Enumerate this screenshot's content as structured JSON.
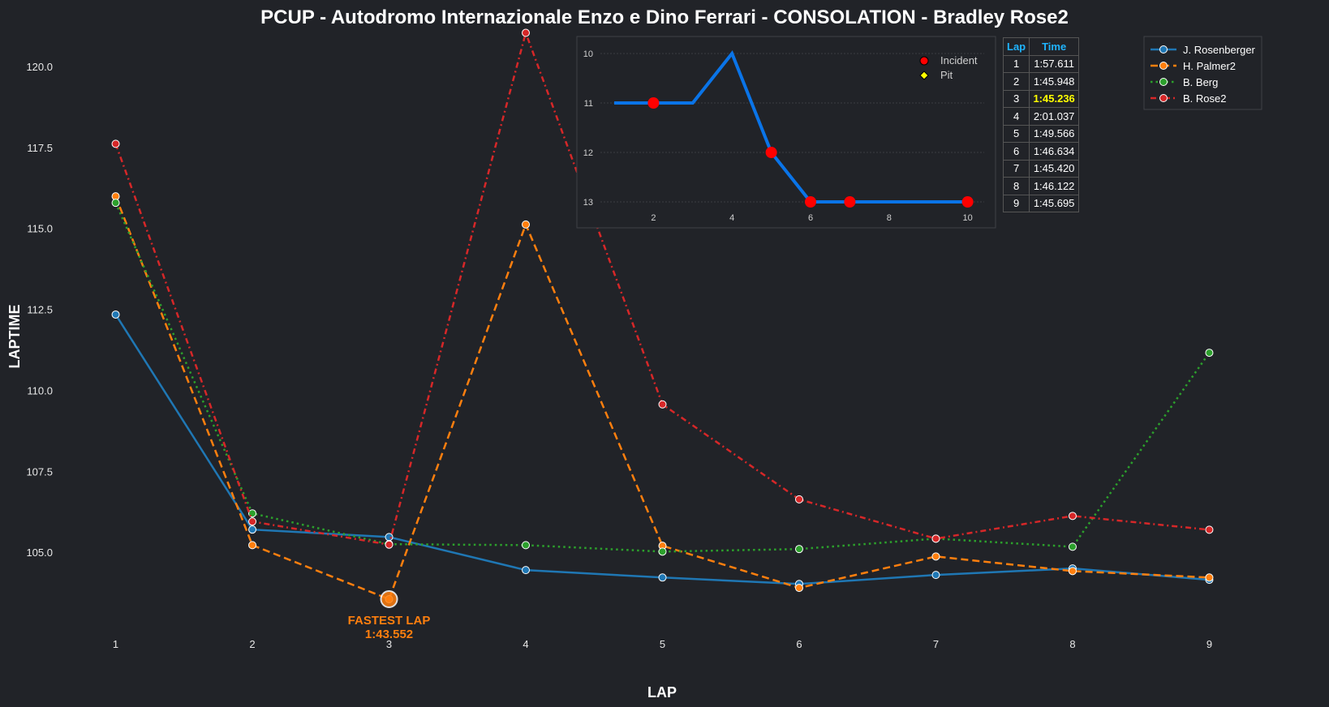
{
  "chart_data": {
    "type": "line",
    "title": "PCUP - Autodromo Internazionale Enzo e Dino Ferrari - CONSOLATION - Bradley Rose2",
    "xlabel": "LAP",
    "ylabel": "LAPTIME",
    "x": [
      1,
      2,
      3,
      4,
      5,
      6,
      7,
      8,
      9
    ],
    "xlim": [
      0.7,
      9.3
    ],
    "ylim": [
      102.15,
      121.1
    ],
    "yticks": [
      105.0,
      107.5,
      110.0,
      112.5,
      115.0,
      117.5,
      120.0
    ],
    "ytick_labels": [
      "105.0",
      "107.5",
      "110.0",
      "112.5",
      "115.0",
      "117.5",
      "120.0"
    ],
    "xtick_labels": [
      "1",
      "2",
      "3",
      "4",
      "5",
      "6",
      "7",
      "8",
      "9"
    ],
    "legend_position": "top-right",
    "series": [
      {
        "name": "J. Rosenberger",
        "color": "#1f77b4",
        "dash": "solid",
        "values": [
          112.34,
          105.7,
          105.47,
          104.45,
          104.22,
          104.02,
          104.3,
          104.5,
          104.15
        ]
      },
      {
        "name": "H. Palmer2",
        "color": "#ff7f0e",
        "dash": "dashed",
        "values": [
          115.99,
          105.22,
          103.552,
          115.12,
          105.2,
          103.9,
          104.87,
          104.42,
          104.22
        ]
      },
      {
        "name": "B. Berg",
        "color": "#2ca02c",
        "dash": "dotted",
        "values": [
          115.79,
          106.2,
          105.25,
          105.22,
          105.02,
          105.1,
          105.42,
          105.17,
          111.16
        ]
      },
      {
        "name": "B. Rose2",
        "color": "#d62728",
        "dash": "dashdot",
        "values": [
          117.611,
          105.948,
          105.236,
          121.037,
          109.566,
          106.634,
          105.42,
          106.122,
          105.695
        ]
      }
    ],
    "annotation": {
      "lap": 3,
      "value": 103.552,
      "line1": "FASTEST LAP",
      "line2": "1:43.552",
      "color": "#ff7f0e"
    },
    "inset": {
      "type": "line",
      "x": [
        1,
        2,
        3,
        4,
        5,
        6,
        7,
        8,
        9,
        10
      ],
      "positions": [
        11,
        11,
        11,
        10,
        12,
        13,
        13,
        13,
        13,
        13
      ],
      "incident_laps": [
        2,
        5,
        6,
        7,
        10
      ],
      "pit_laps": [],
      "xlim": [
        0.5,
        10.5
      ],
      "ylim": [
        13.2,
        9.8
      ],
      "xticks": [
        "2",
        "4",
        "6",
        "8",
        "10"
      ],
      "yticks": [
        "10",
        "11",
        "12",
        "13"
      ],
      "line_color": "#0a74e8",
      "legend": {
        "incident": "Incident",
        "pit": "Pit"
      }
    },
    "table": {
      "headers": [
        "Lap",
        "Time"
      ],
      "rows": [
        {
          "lap": "1",
          "time": "1:57.611"
        },
        {
          "lap": "2",
          "time": "1:45.948"
        },
        {
          "lap": "3",
          "time": "1:45.236",
          "best": true
        },
        {
          "lap": "4",
          "time": "2:01.037"
        },
        {
          "lap": "5",
          "time": "1:49.566"
        },
        {
          "lap": "6",
          "time": "1:46.634"
        },
        {
          "lap": "7",
          "time": "1:45.420"
        },
        {
          "lap": "8",
          "time": "1:46.122"
        },
        {
          "lap": "9",
          "time": "1:45.695"
        }
      ]
    }
  }
}
